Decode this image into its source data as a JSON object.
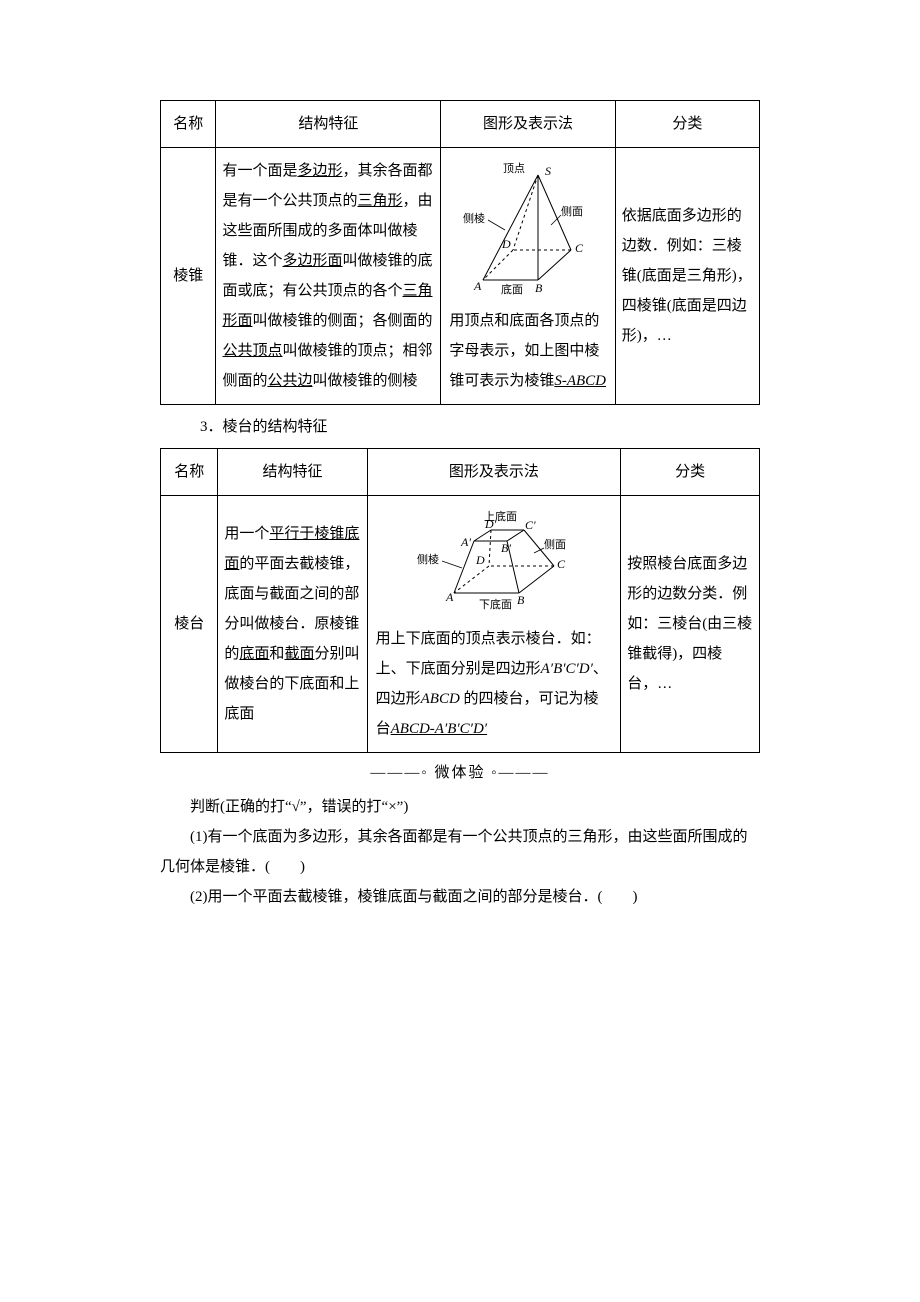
{
  "table1": {
    "headers": [
      "名称",
      "结构特征",
      "图形及表示法",
      "分类"
    ],
    "row": {
      "name": "棱锥",
      "struct_parts": [
        {
          "t": "有一个面是"
        },
        {
          "t": "多边形",
          "u": true
        },
        {
          "t": "，其余各面都是有一个公共顶点的"
        },
        {
          "t": "三角形",
          "u": true
        },
        {
          "t": "，由这些面所围成的多面体叫做棱锥．这个"
        },
        {
          "t": "多边形面",
          "u": true
        },
        {
          "t": "叫做棱锥的底面或底；有公共顶点的各个"
        },
        {
          "t": "三角形面",
          "u": true
        },
        {
          "t": "叫做棱锥的侧面；各侧面的"
        },
        {
          "t": "公共顶点",
          "u": true
        },
        {
          "t": "叫做棱锥的顶点；相邻侧面的"
        },
        {
          "t": "公共边",
          "u": true
        },
        {
          "t": "叫做棱锥的侧棱"
        }
      ],
      "fig": {
        "labels": {
          "apex": "顶点",
          "side_edge": "侧棱",
          "side_face": "侧面",
          "base": "底面",
          "S": "S",
          "A": "A",
          "B": "B",
          "C": "C",
          "D": "D"
        },
        "caption_parts": [
          {
            "t": "用顶点和底面各顶点的字母表示，如上图中棱锥可表示为棱锥"
          },
          {
            "t": "S-ABCD",
            "u": true,
            "i": true
          }
        ]
      },
      "classify_parts": [
        {
          "t": "依据底面多边形的边数．"
        },
        {
          "t": "例如：三棱锥(底面是三角形)，"
        },
        {
          "t": "四棱锥(底面是四边形)，"
        },
        {
          "t": "…"
        }
      ]
    }
  },
  "section_title": "3．棱台的结构特征",
  "table2": {
    "headers": [
      "名称",
      "结构特征",
      "图形及表示法",
      "分类"
    ],
    "row": {
      "name": "棱台",
      "struct_parts": [
        {
          "t": "用一个"
        },
        {
          "t": "平行于棱锥底面",
          "u": true
        },
        {
          "t": "的平面去截棱锥，底面与截面之间的部分叫做棱台．原棱锥的"
        },
        {
          "t": "底面",
          "u": true
        },
        {
          "t": "和"
        },
        {
          "t": "截面",
          "u": true
        },
        {
          "t": "分别叫做棱台的下底面和上底面"
        }
      ],
      "fig": {
        "labels": {
          "top": "上底面",
          "bottom": "下底面",
          "side_edge": "侧棱",
          "side_face": "侧面",
          "A": "A",
          "B": "B",
          "C": "C",
          "D": "D",
          "Ap": "A′",
          "Bp": "B′",
          "Cp": "C′",
          "Dp": "D′"
        },
        "caption_parts": [
          {
            "t": "用上下底面的顶点表示棱台．如：上、下底面分别是四边形"
          },
          {
            "t": "A′B′C′D′",
            "i": true
          },
          {
            "t": "、四边形"
          },
          {
            "t": "ABCD",
            "i": true
          },
          {
            "t": " 的四棱台，可记为棱台"
          },
          {
            "t": "ABCD-A′B′C′D′",
            "u": true,
            "i": true
          }
        ]
      },
      "classify_parts": [
        {
          "t": "按照棱台底面多边形的边数分类．例如：三棱台(由三棱锥截得)，四棱台，…"
        }
      ]
    }
  },
  "micro_experience": "———◦ 微体验 ◦———",
  "judge_intro": "判断(正确的打“√”，错误的打“×”)",
  "q1": "(1)有一个底面为多边形，其余各面都是有一个公共顶点的三角形，由这些面所围成的几何体是棱锥．(　　)",
  "q2": "(2)用一个平面去截棱锥，棱锥底面与截面之间的部分是棱台．(　　)",
  "colors": {
    "text": "#000000",
    "bg": "#ffffff",
    "border": "#000000"
  }
}
